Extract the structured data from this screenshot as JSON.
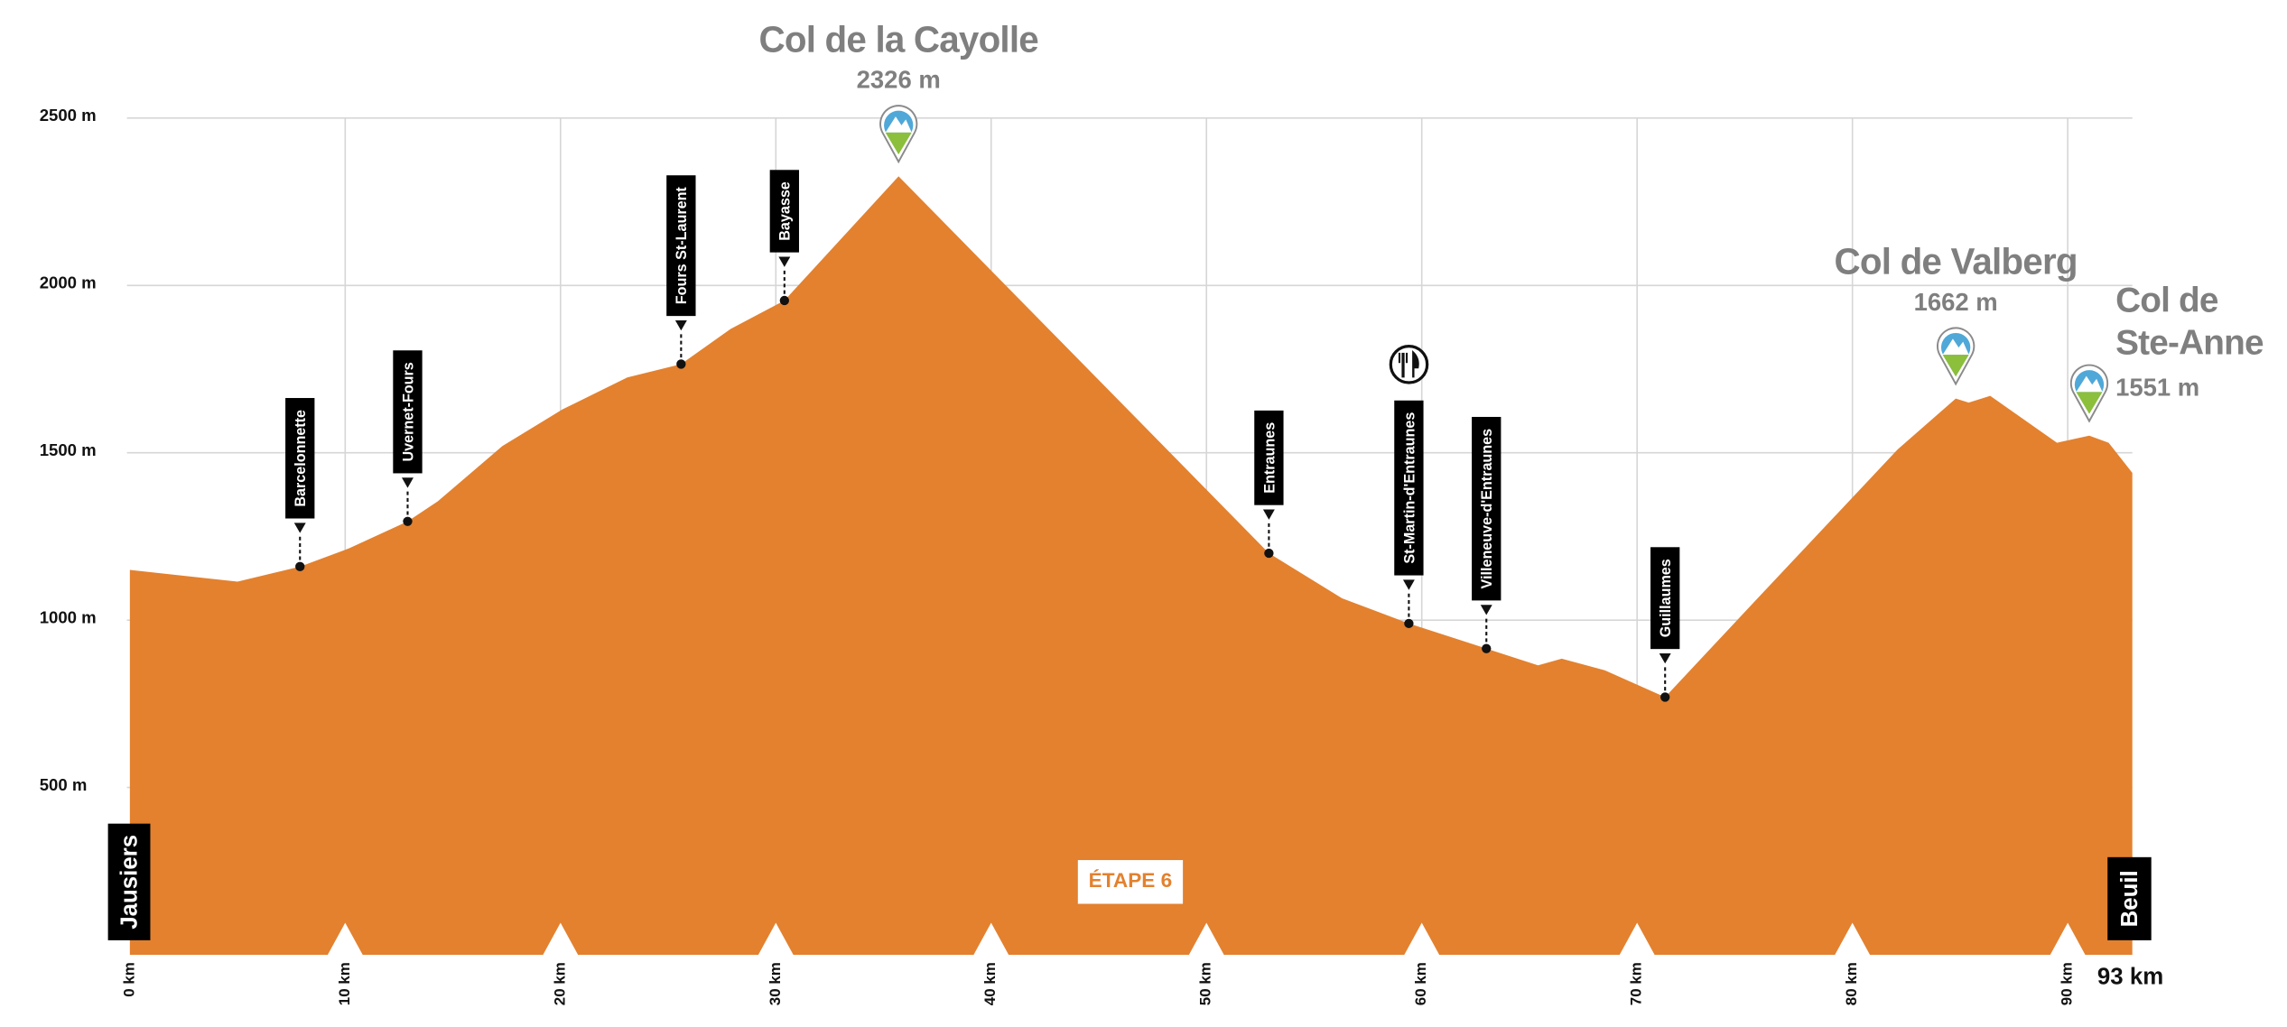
{
  "chart_data": {
    "type": "area",
    "color": "#e3812f",
    "grid": true,
    "x": [
      0,
      5,
      7.9,
      10.2,
      12.9,
      14.3,
      17.3,
      20.1,
      23.1,
      25.6,
      27.9,
      30.4,
      35.7,
      52.9,
      56.3,
      59.4,
      63,
      65.4,
      66.5,
      68.5,
      71.3,
      75.3,
      82.1,
      84.8,
      85.4,
      86.4,
      89.5,
      91,
      91.9,
      93
    ],
    "values": [
      1150,
      1115,
      1160,
      1215,
      1295,
      1355,
      1520,
      1630,
      1725,
      1765,
      1870,
      1955,
      2326,
      1200,
      1065,
      990,
      915,
      865,
      885,
      850,
      770,
      1045,
      1510,
      1662,
      1650,
      1670,
      1530,
      1551,
      1530,
      1440
    ],
    "xlim": [
      0,
      93
    ],
    "ylim": [
      0,
      2500
    ],
    "xticks": [
      {
        "value": 0,
        "label": "0 km"
      },
      {
        "value": 10,
        "label": "10 km"
      },
      {
        "value": 20,
        "label": "20 km"
      },
      {
        "value": 30,
        "label": "30 km"
      },
      {
        "value": 40,
        "label": "40 km"
      },
      {
        "value": 50,
        "label": "50 km"
      },
      {
        "value": 60,
        "label": "60 km"
      },
      {
        "value": 70,
        "label": "70 km"
      },
      {
        "value": 80,
        "label": "80 km"
      },
      {
        "value": 90,
        "label": "90 km"
      },
      {
        "value": 93,
        "label": "93 km"
      }
    ],
    "yticks": [
      {
        "value": 500,
        "label": "500 m"
      },
      {
        "value": 1000,
        "label": "1000 m"
      },
      {
        "value": 1500,
        "label": "1500 m"
      },
      {
        "value": 2000,
        "label": "2000 m"
      },
      {
        "value": 2500,
        "label": "2500 m"
      }
    ],
    "stage_label": "ÉTAPE 6",
    "start": "Jausiers",
    "finish": "Beuil",
    "waypoints": [
      {
        "name": "Barcelonnette",
        "km": 7.9,
        "elevation": 1160
      },
      {
        "name": "Uvernet-Fours",
        "km": 12.9,
        "elevation": 1295
      },
      {
        "name": "Fours St-Laurent",
        "km": 25.6,
        "elevation": 1765
      },
      {
        "name": "Bayasse",
        "km": 30.4,
        "elevation": 1955
      },
      {
        "name": "Entraunes",
        "km": 52.9,
        "elevation": 1200
      },
      {
        "name": "St-Martin-d'Entraunes",
        "km": 59.4,
        "elevation": 990
      },
      {
        "name": "Villeneuve-d'Entraunes",
        "km": 63,
        "elevation": 915
      },
      {
        "name": "Guillaumes",
        "km": 71.3,
        "elevation": 770
      }
    ],
    "passes": [
      {
        "name": "Col de la Cayolle",
        "km": 35.7,
        "elevation": 2326,
        "elevation_label": "2326 m"
      },
      {
        "name": "Col de Valberg",
        "km": 84.8,
        "elevation": 1662,
        "elevation_label": "1662 m"
      },
      {
        "name": "Col de Ste-Anne",
        "km": 91,
        "elevation": 1551,
        "elevation_label": "1551 m"
      }
    ]
  }
}
